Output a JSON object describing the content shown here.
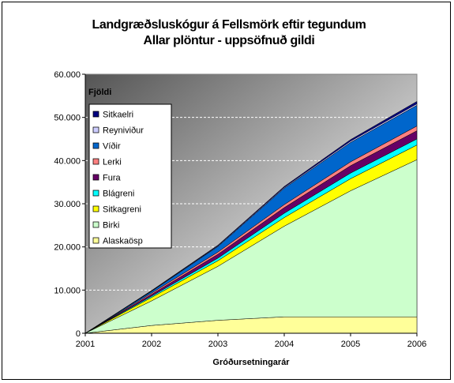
{
  "chart_data": {
    "type": "area",
    "stacked": true,
    "title": "Landgræðsluskógur á Fellsmörk eftir tegundum",
    "subtitle": "Allar plöntur - uppsöfnuð gildi",
    "xlabel": "Gróðursetningarár",
    "ylabel": "Fjöldi",
    "x": [
      2001,
      2002,
      2003,
      2004,
      2005,
      2006
    ],
    "x_tick_labels": [
      "2001",
      "2002",
      "2003",
      "2004",
      "2005",
      "2006"
    ],
    "ylim": [
      0,
      60000
    ],
    "y_ticks": [
      0,
      10000,
      20000,
      30000,
      40000,
      50000,
      60000
    ],
    "y_tick_labels": [
      "0",
      "10.000",
      "20.000",
      "30.000",
      "40.000",
      "50.000",
      "60.000"
    ],
    "grid": "horizontal dashed",
    "legend_position": "left",
    "series": [
      {
        "name": "Alaskaösp",
        "color": "#FFFF99",
        "values": [
          0,
          1800,
          3000,
          3800,
          3800,
          3800
        ]
      },
      {
        "name": "Birki",
        "color": "#CCFFCC",
        "values": [
          0,
          5700,
          12500,
          21000,
          29200,
          36400
        ]
      },
      {
        "name": "Sitkagreni",
        "color": "#FFFF00",
        "values": [
          0,
          800,
          1300,
          2000,
          2800,
          3400
        ]
      },
      {
        "name": "Blágreni",
        "color": "#00FFFF",
        "values": [
          0,
          300,
          600,
          1000,
          1300,
          1400
        ]
      },
      {
        "name": "Fura",
        "color": "#660066",
        "values": [
          0,
          400,
          900,
          1300,
          1700,
          1900
        ]
      },
      {
        "name": "Lerki",
        "color": "#FF8080",
        "values": [
          0,
          300,
          500,
          700,
          900,
          1100
        ]
      },
      {
        "name": "Víðir",
        "color": "#0066CC",
        "values": [
          0,
          400,
          1300,
          3800,
          4500,
          4800
        ]
      },
      {
        "name": "Reyniviður",
        "color": "#CCCCFF",
        "values": [
          0,
          100,
          150,
          200,
          300,
          350
        ]
      },
      {
        "name": "Sitkaelri",
        "color": "#000080",
        "values": [
          0,
          100,
          150,
          200,
          350,
          550
        ]
      }
    ],
    "legend_order": [
      "Sitkaelri",
      "Reyniviður",
      "Víðir",
      "Lerki",
      "Fura",
      "Blágreni",
      "Sitkagreni",
      "Birki",
      "Alaskaösp"
    ]
  }
}
